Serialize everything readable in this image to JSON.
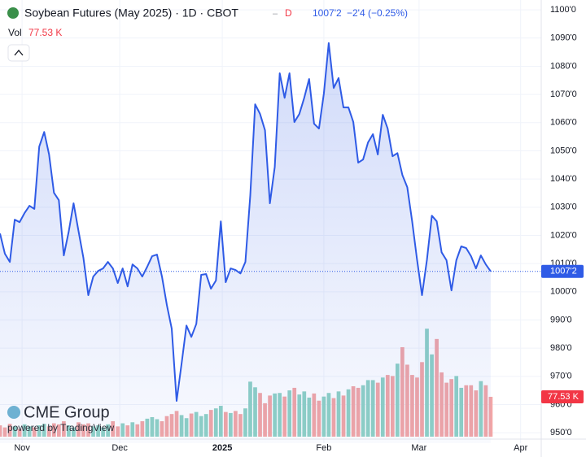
{
  "header": {
    "symbol": "Soybean Futures (May 2025) · 1D · CBOT",
    "flag": "D",
    "last": "1007'2",
    "change": "−2'4",
    "change_pct": "(−0.25%)",
    "vol_title": "Vol",
    "vol_value": "77.53 K"
  },
  "branding": {
    "logo": "CME Group",
    "powered": "powered by TradingView"
  },
  "chart_data": {
    "type": "line",
    "color": "#2f5be6",
    "xlim": [
      0,
      110.3
    ],
    "xticks": [
      {
        "value": 4.5,
        "label": "Nov"
      },
      {
        "value": 24.4,
        "label": "Dec"
      },
      {
        "value": 45.3,
        "label": "2025"
      },
      {
        "value": 66,
        "label": "Feb"
      },
      {
        "value": 85.4,
        "label": "Mar"
      },
      {
        "value": 106.1,
        "label": "Apr"
      }
    ],
    "ylim": [
      946.3,
      1103.5
    ],
    "yticks": [
      {
        "value": 950,
        "label": "950'0"
      },
      {
        "value": 960,
        "label": "960'0"
      },
      {
        "value": 970,
        "label": "970'0"
      },
      {
        "value": 980,
        "label": "980'0"
      },
      {
        "value": 990,
        "label": "990'0"
      },
      {
        "value": 1000,
        "label": "1000'0"
      },
      {
        "value": 1010,
        "label": "1010'0"
      },
      {
        "value": 1020,
        "label": "1020'0"
      },
      {
        "value": 1030,
        "label": "1030'0"
      },
      {
        "value": 1040,
        "label": "1040'0"
      },
      {
        "value": 1050,
        "label": "1050'0"
      },
      {
        "value": 1060,
        "label": "1060'0"
      },
      {
        "value": 1070,
        "label": "1070'0"
      },
      {
        "value": 1080,
        "label": "1080'0"
      },
      {
        "value": 1090,
        "label": "1090'0"
      },
      {
        "value": 1100,
        "label": "1100'0"
      }
    ],
    "series": [
      {
        "name": "Price",
        "color": "#2f5be6",
        "values": [
          1020.7,
          1013.5,
          1010.6,
          1025.6,
          1024.7,
          1027.9,
          1030.5,
          1029.4,
          1051.5,
          1056.7,
          1048.7,
          1035.1,
          1032.5,
          1012.9,
          1021.3,
          1031.4,
          1021.5,
          1012.0,
          998.8,
          1005.4,
          1007.4,
          1008.3,
          1010.6,
          1008.3,
          1003.1,
          1008.3,
          1001.9,
          1009.7,
          1008.3,
          1005.4,
          1008.9,
          1012.6,
          1013.2,
          1005.4,
          995.3,
          986.9,
          961.3,
          974.5,
          988.0,
          984.0,
          988.6,
          1006.0,
          1006.3,
          1001.1,
          1004.0,
          1025.0,
          1003.4,
          1008.3,
          1007.7,
          1006.5,
          1010.6,
          1034.2,
          1066.5,
          1063.1,
          1057.3,
          1031.4,
          1044.3,
          1077.5,
          1068.8,
          1077.5,
          1060.2,
          1063.1,
          1068.8,
          1075.5,
          1059.6,
          1057.9,
          1070.3,
          1088.2,
          1072.3,
          1075.8,
          1065.4,
          1065.4,
          1060.2,
          1045.8,
          1046.9,
          1053.0,
          1055.9,
          1048.7,
          1062.8,
          1057.9,
          1048.1,
          1049.2,
          1041.4,
          1037.1,
          1025.0,
          1011.2,
          998.8,
          1011.2,
          1027.0,
          1025.0,
          1014.0,
          1011.2,
          1000.5,
          1011.2,
          1016.1,
          1015.5,
          1012.6,
          1008.3,
          1012.9,
          1009.7,
          1007.25
        ]
      },
      {
        "name": "Vol",
        "up_color": "#8fd1c5",
        "down_color": "#f2a6a6",
        "ylim": [
          0,
          253
        ],
        "values": [
          22,
          18,
          25,
          20,
          15,
          24,
          20,
          18,
          22,
          25,
          20,
          26,
          24,
          30,
          22,
          18,
          28,
          24,
          26,
          20,
          22,
          18,
          24,
          30,
          20,
          26,
          22,
          28,
          24,
          30,
          35,
          38,
          34,
          30,
          40,
          44,
          50,
          42,
          36,
          45,
          48,
          40,
          44,
          52,
          55,
          60,
          48,
          46,
          50,
          44,
          55,
          107,
          96,
          85,
          65,
          80,
          84,
          85,
          78,
          90,
          95,
          82,
          88,
          76,
          84,
          70,
          78,
          85,
          75,
          88,
          80,
          92,
          98,
          95,
          100,
          110,
          110,
          105,
          115,
          120,
          118,
          142,
          174,
          140,
          120,
          115,
          145,
          210,
          160,
          190,
          125,
          105,
          112,
          118,
          95,
          100,
          100,
          90,
          108,
          100,
          77.53
        ]
      }
    ]
  }
}
